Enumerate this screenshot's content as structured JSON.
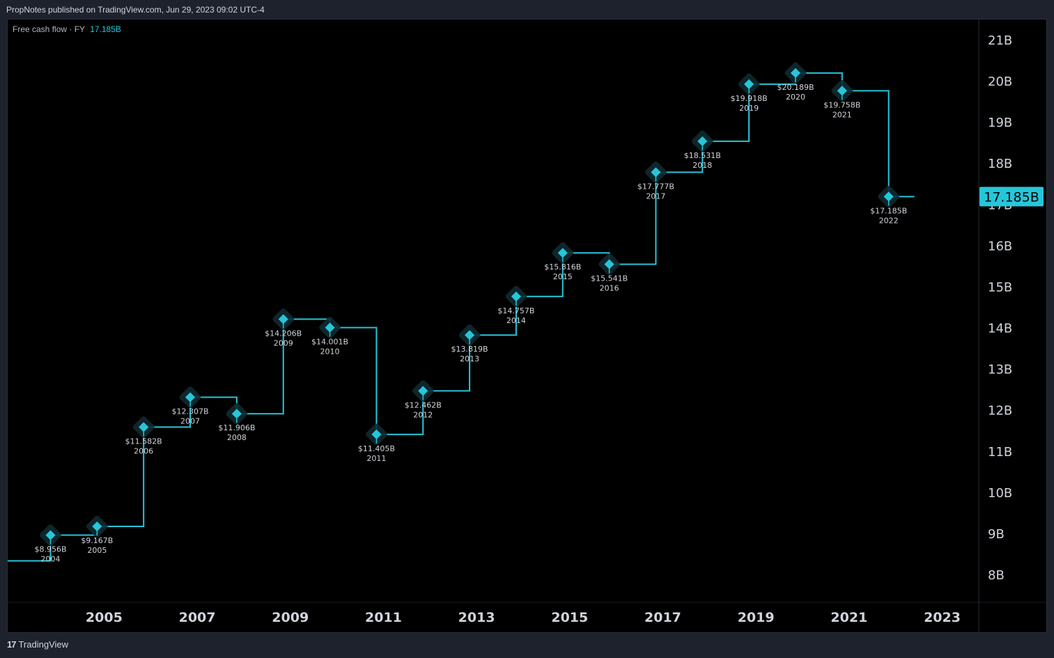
{
  "header": {
    "text": "PropNotes published on TradingView.com, Jun 29, 2023 09:02 UTC-4"
  },
  "legend": {
    "name": "Free cash flow · FY",
    "value": "17.185B"
  },
  "footer": {
    "brand": "TradingView",
    "logo_icon": "tradingview-logo-icon"
  },
  "colors": {
    "line": "#26c6da",
    "background": "#000000",
    "axis_text": "#d1d4dc",
    "price_tag_bg": "#26c6da",
    "price_tag_text": "#000000"
  },
  "chart_data": {
    "type": "line",
    "step": true,
    "series": [
      {
        "name": "Free cash flow · FY",
        "points": [
          {
            "year": 2004,
            "value": 8.956,
            "label": "$8.956B"
          },
          {
            "year": 2005,
            "value": 9.167,
            "label": "$9.167B"
          },
          {
            "year": 2006,
            "value": 11.582,
            "label": "$11.582B"
          },
          {
            "year": 2007,
            "value": 12.307,
            "label": "$12.307B"
          },
          {
            "year": 2008,
            "value": 11.906,
            "label": "$11.906B"
          },
          {
            "year": 2009,
            "value": 14.206,
            "label": "$14.206B"
          },
          {
            "year": 2010,
            "value": 14.001,
            "label": "$14.001B"
          },
          {
            "year": 2011,
            "value": 11.405,
            "label": "$11.405B"
          },
          {
            "year": 2012,
            "value": 12.462,
            "label": "$12.462B"
          },
          {
            "year": 2013,
            "value": 13.819,
            "label": "$13.819B"
          },
          {
            "year": 2014,
            "value": 14.757,
            "label": "$14.757B"
          },
          {
            "year": 2015,
            "value": 15.816,
            "label": "$15.816B"
          },
          {
            "year": 2016,
            "value": 15.541,
            "label": "$15.541B"
          },
          {
            "year": 2017,
            "value": 17.777,
            "label": "$17.777B"
          },
          {
            "year": 2018,
            "value": 18.531,
            "label": "$18.531B"
          },
          {
            "year": 2019,
            "value": 19.918,
            "label": "$19.918B"
          },
          {
            "year": 2020,
            "value": 20.189,
            "label": "$20.189B"
          },
          {
            "year": 2021,
            "value": 19.758,
            "label": "$19.758B"
          },
          {
            "year": 2022,
            "value": 17.185,
            "label": "$17.185B"
          }
        ]
      }
    ],
    "prev_value": 8.33,
    "y_ticks": [
      "8B",
      "9B",
      "10B",
      "11B",
      "12B",
      "13B",
      "14B",
      "15B",
      "16B",
      "17B",
      "18B",
      "19B",
      "20B",
      "21B"
    ],
    "y_tick_values": [
      8,
      9,
      10,
      11,
      12,
      13,
      14,
      15,
      16,
      17,
      18,
      19,
      20,
      21
    ],
    "x_ticks": [
      "2005",
      "2007",
      "2009",
      "2011",
      "2013",
      "2015",
      "2017",
      "2019",
      "2021",
      "2023"
    ],
    "x_tick_values": [
      2005.15,
      2007.15,
      2009.15,
      2011.15,
      2013.15,
      2015.15,
      2017.15,
      2019.15,
      2021.15,
      2023.15
    ],
    "y_range": [
      7.34,
      21.49
    ],
    "x_range": [
      2003.08,
      2023.92
    ],
    "current_value_tag": "17.185B",
    "grid": false
  }
}
